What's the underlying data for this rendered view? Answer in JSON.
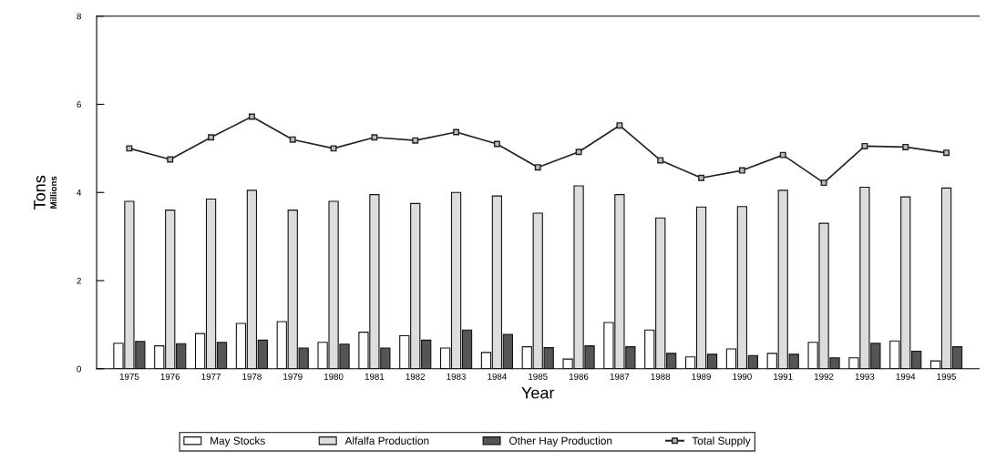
{
  "chart_data": {
    "type": "bar",
    "xlabel": "Year",
    "ylabel": "Tons",
    "annotations": [
      "Millions"
    ],
    "categories": [
      "1975",
      "1976",
      "1977",
      "1978",
      "1979",
      "1980",
      "1981",
      "1982",
      "1983",
      "1984",
      "1985",
      "1986",
      "1987",
      "1988",
      "1989",
      "1990",
      "1991",
      "1992",
      "1993",
      "1994",
      "1995"
    ],
    "series": [
      {
        "name": "May Stocks",
        "color": "#ffffff",
        "values": [
          0.58,
          0.52,
          0.8,
          1.03,
          1.07,
          0.6,
          0.83,
          0.75,
          0.47,
          0.37,
          0.5,
          0.22,
          1.05,
          0.88,
          0.27,
          0.45,
          0.35,
          0.6,
          0.25,
          0.63,
          0.18
        ]
      },
      {
        "name": "Alfalfa Production",
        "color": "#dcdcdc",
        "values": [
          3.8,
          3.6,
          3.85,
          4.05,
          3.6,
          3.8,
          3.95,
          3.75,
          4.0,
          3.92,
          3.53,
          4.15,
          3.95,
          3.42,
          3.67,
          3.68,
          4.05,
          3.3,
          4.12,
          3.9,
          4.1
        ]
      },
      {
        "name": "Other Hay Production",
        "color": "#555555",
        "values": [
          0.62,
          0.57,
          0.6,
          0.65,
          0.47,
          0.56,
          0.47,
          0.65,
          0.88,
          0.78,
          0.48,
          0.52,
          0.5,
          0.35,
          0.33,
          0.3,
          0.33,
          0.25,
          0.58,
          0.4,
          0.5
        ]
      },
      {
        "name": "Total Supply",
        "type": "line",
        "color": "#222222",
        "marker": "square",
        "values": [
          5.0,
          4.75,
          5.25,
          5.72,
          5.2,
          5.0,
          5.25,
          5.18,
          5.37,
          5.1,
          4.57,
          4.92,
          5.52,
          4.73,
          4.33,
          4.5,
          4.85,
          4.22,
          5.05,
          5.03,
          4.9
        ]
      }
    ],
    "ylim": [
      0,
      8
    ],
    "yticks": [
      0,
      2,
      4,
      6,
      8
    ],
    "grid": false,
    "legend": "bottom"
  }
}
